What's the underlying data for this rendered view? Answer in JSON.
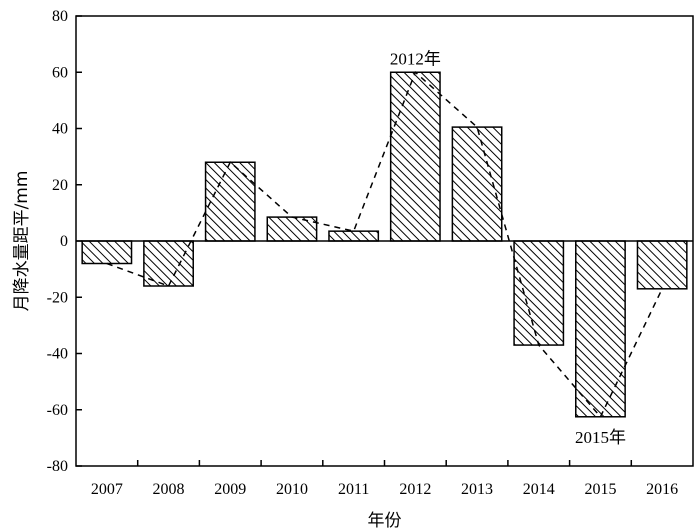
{
  "chart_data": {
    "type": "bar",
    "categories": [
      "2007",
      "2008",
      "2009",
      "2010",
      "2011",
      "2012",
      "2013",
      "2014",
      "2015",
      "2016"
    ],
    "values": [
      -8,
      -16,
      28,
      8.5,
      3.5,
      60,
      40.5,
      -37,
      -62.5,
      -17
    ],
    "overlay_line": "dashed",
    "title": "",
    "xlabel": "年份",
    "ylabel": "月降水量距平/mm",
    "ylim": [
      -80,
      80
    ],
    "yticks": [
      "80",
      "60",
      "40",
      "20",
      "0",
      "-20",
      "-40",
      "-60",
      "-80"
    ],
    "bar_fill": "diagonal-hatch",
    "grid": false,
    "legend": "none",
    "annotations": [
      {
        "text": "2012年",
        "category": "2012"
      },
      {
        "text": "2015年",
        "category": "2015"
      }
    ],
    "colors": {
      "bar_stroke": "#000000",
      "hatch": "#000000",
      "background": "#ffffff"
    }
  }
}
